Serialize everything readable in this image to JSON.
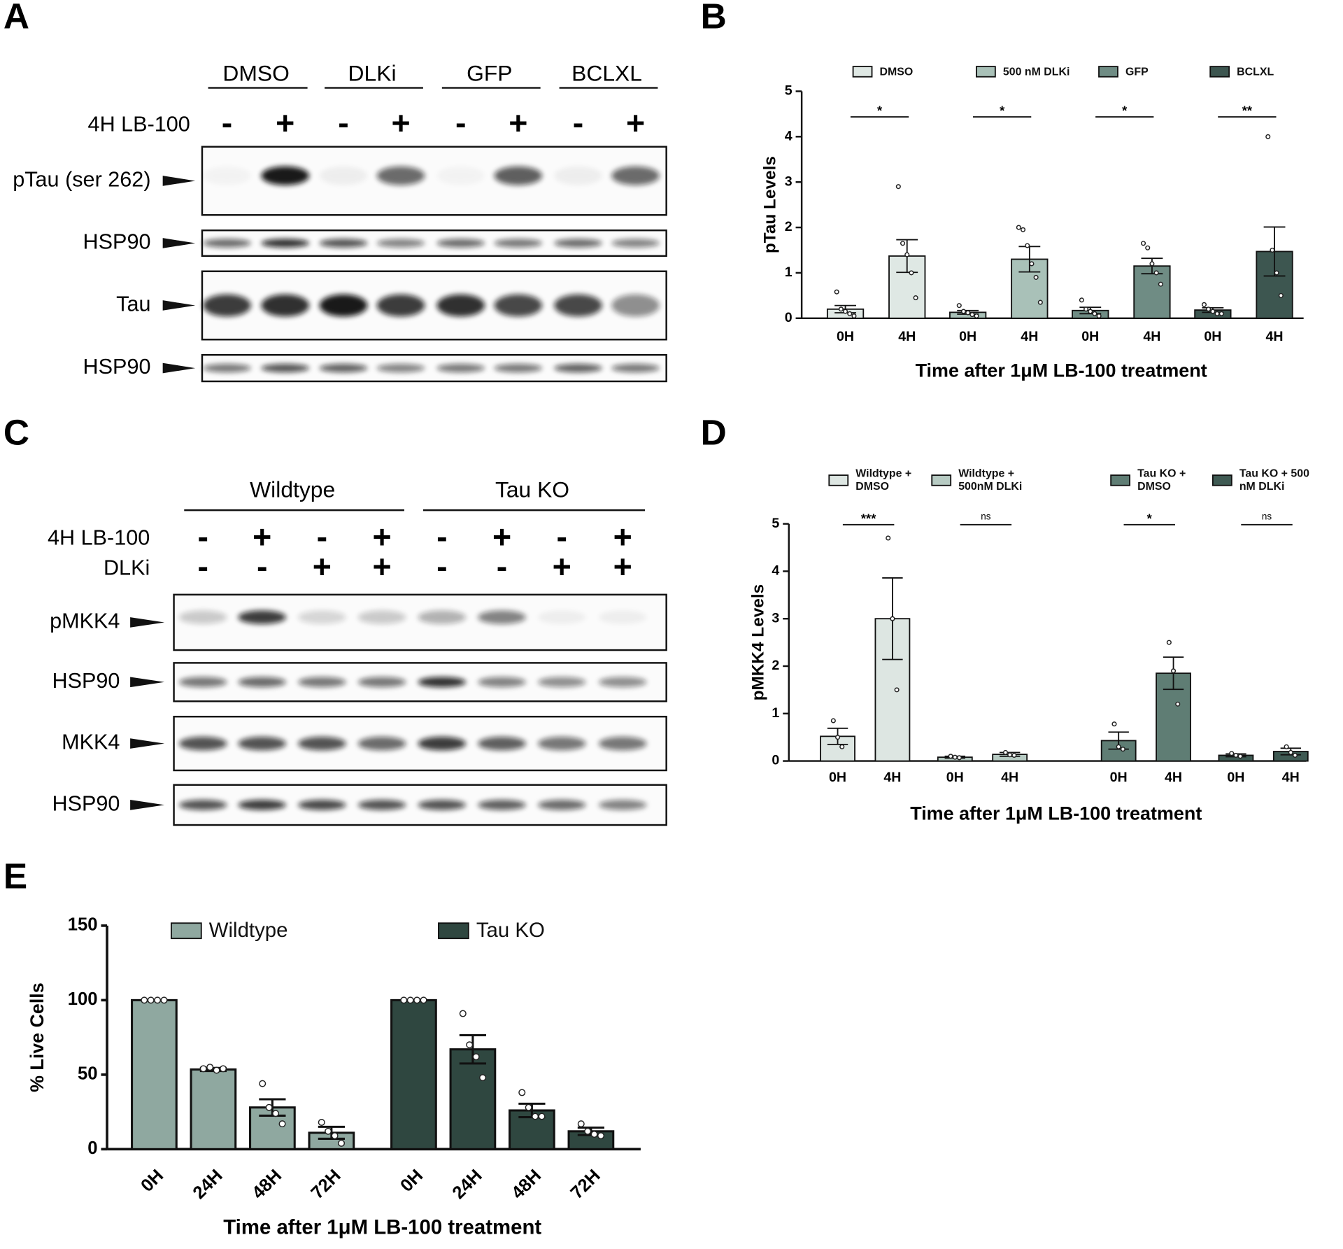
{
  "blots": [
    {
      "panel": "A",
      "conditions": [
        "DMSO",
        "DLKi",
        "GFP",
        "BCLXL"
      ],
      "treatments": [
        {
          "label": "4H LB-100",
          "signs": [
            "-",
            "+",
            "-",
            "+",
            "-",
            "+",
            "-",
            "+"
          ]
        }
      ],
      "rows": [
        "pTau (ser 262)",
        "HSP90",
        "Tau",
        "HSP90"
      ]
    },
    {
      "panel": "C",
      "conditions": [
        "Wildtype",
        "Tau KO"
      ],
      "treatments": [
        {
          "label": "4H LB-100",
          "signs": [
            "-",
            "+",
            "-",
            "+",
            "-",
            "+",
            "-",
            "+"
          ]
        },
        {
          "label": "DLKi",
          "signs": [
            "-",
            "-",
            "+",
            "+",
            "-",
            "-",
            "+",
            "+"
          ]
        }
      ],
      "rows": [
        "pMKK4",
        "HSP90",
        "MKK4",
        "HSP90"
      ]
    }
  ],
  "chart_data": [
    {
      "panel": "B",
      "type": "bar",
      "ylabel": "pTau  Levels",
      "xlabel": "Time after 1μM LB-100 treatment",
      "categories": [
        "0H",
        "4H"
      ],
      "ylim": [
        0,
        5
      ],
      "yticks": [
        0,
        1,
        2,
        3,
        4,
        5
      ],
      "series": [
        {
          "name": "DMSO",
          "color": "#dfe8e4",
          "values": [
            0.2,
            1.37
          ],
          "errors": [
            0.08,
            0.36
          ],
          "points": [
            [
              0.58,
              0.2,
              0.15,
              0.1,
              0.05
            ],
            [
              2.9,
              1.65,
              1.4,
              1.0,
              0.45
            ]
          ],
          "significance": "*"
        },
        {
          "name": "500 nM DLKi",
          "color": "#a9c1b8",
          "values": [
            0.13,
            1.3
          ],
          "errors": [
            0.04,
            0.28
          ],
          "points": [
            [
              0.28,
              0.15,
              0.12,
              0.08,
              0.05
            ],
            [
              2.0,
              1.95,
              1.6,
              1.2,
              0.9,
              0.35
            ]
          ],
          "significance": "*"
        },
        {
          "name": "GFP",
          "color": "#6f8c84",
          "values": [
            0.17,
            1.15
          ],
          "errors": [
            0.07,
            0.17
          ],
          "points": [
            [
              0.4,
              0.2,
              0.15,
              0.1,
              0.05
            ],
            [
              1.65,
              1.55,
              1.2,
              1.0,
              0.75
            ]
          ],
          "significance": "*"
        },
        {
          "name": "BCLXL",
          "color": "#3d5650",
          "values": [
            0.18,
            1.47
          ],
          "errors": [
            0.05,
            0.54
          ],
          "points": [
            [
              0.3,
              0.2,
              0.15,
              0.1,
              0.1
            ],
            [
              4.0,
              1.5,
              1.0,
              0.5
            ]
          ],
          "significance": "**"
        }
      ]
    },
    {
      "panel": "D",
      "type": "bar",
      "ylabel": "pMKK4 Levels",
      "xlabel": "Time after 1μM LB-100 treatment",
      "categories": [
        "0H",
        "4H"
      ],
      "ylim": [
        0,
        5
      ],
      "yticks": [
        0,
        1,
        2,
        3,
        4,
        5
      ],
      "series": [
        {
          "name": "Wildtype + DMSO",
          "color": "#dde6e2",
          "values": [
            0.52,
            3.0
          ],
          "errors": [
            0.17,
            0.86
          ],
          "points": [
            [
              0.85,
              0.5,
              0.3
            ],
            [
              4.7,
              3.0,
              1.5
            ]
          ],
          "significance": "***"
        },
        {
          "name": "Wildtype + 500nM DLKi",
          "color": "#b7cbc3",
          "values": [
            0.08,
            0.14
          ],
          "errors": [
            0.02,
            0.04
          ],
          "points": [
            [
              0.1,
              0.08,
              0.07
            ],
            [
              0.18,
              0.13,
              0.12
            ]
          ],
          "significance": "ns"
        },
        {
          "name": "Tau KO + DMSO",
          "color": "#5f7d74",
          "values": [
            0.43,
            1.85
          ],
          "errors": [
            0.18,
            0.34
          ],
          "points": [
            [
              0.78,
              0.3,
              0.25
            ],
            [
              2.5,
              1.9,
              1.2
            ]
          ],
          "significance": "*"
        },
        {
          "name": "Tau KO + 500 nM DLKi",
          "color": "#3f5a53",
          "values": [
            0.12,
            0.2
          ],
          "errors": [
            0.03,
            0.07
          ],
          "points": [
            [
              0.16,
              0.12,
              0.1
            ],
            [
              0.3,
              0.18,
              0.12
            ]
          ],
          "significance": "ns"
        }
      ]
    },
    {
      "panel": "E",
      "type": "bar",
      "ylabel": "% Live Cells",
      "xlabel": "Time after 1μM LB-100 treatment",
      "categories": [
        "0H",
        "24H",
        "48H",
        "72H"
      ],
      "ylim": [
        0,
        150
      ],
      "yticks": [
        0,
        50,
        100,
        150
      ],
      "series": [
        {
          "name": "Wildtype",
          "color": "#8fa8a0",
          "values": [
            100,
            53.5,
            28,
            11
          ],
          "errors": [
            0,
            1,
            5.5,
            4
          ],
          "points": [
            [
              100,
              100,
              100,
              100
            ],
            [
              54,
              55,
              53,
              54
            ],
            [
              44,
              28,
              24,
              17
            ],
            [
              18,
              12,
              9,
              4
            ]
          ]
        },
        {
          "name": "Tau KO",
          "color": "#2f4740",
          "values": [
            100,
            67,
            26,
            12
          ],
          "errors": [
            0,
            9.5,
            4.5,
            2.5
          ],
          "points": [
            [
              100,
              100,
              100,
              100
            ],
            [
              91,
              70,
              62,
              48
            ],
            [
              38,
              28,
              22,
              22
            ],
            [
              17,
              12,
              10,
              9
            ]
          ]
        }
      ]
    }
  ]
}
